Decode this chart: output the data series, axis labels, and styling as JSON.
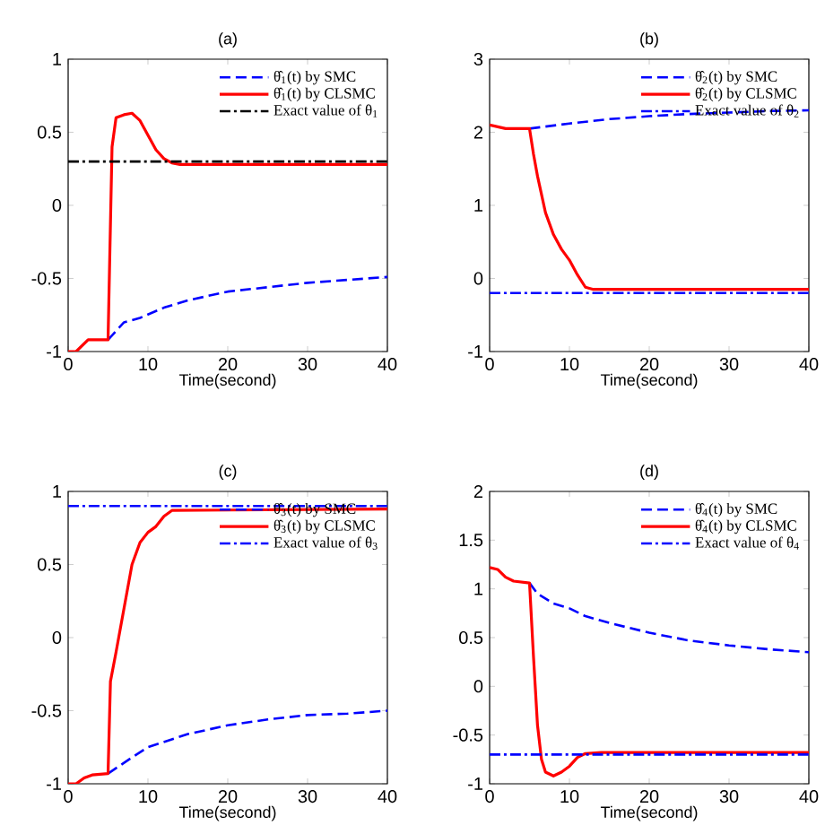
{
  "chart_data": [
    {
      "type": "line",
      "title": "(a)",
      "xlabel": "Time(second)",
      "xlim": [
        0,
        40
      ],
      "ylim": [
        -1,
        1
      ],
      "xticks": [
        0,
        10,
        20,
        30,
        40
      ],
      "yticks": [
        -1,
        -0.5,
        0,
        0.5,
        1
      ],
      "legend": "top right",
      "series": [
        {
          "name": "θ̂$_{1}$(t) by SMC",
          "color": "#0000ff",
          "line_style": "dashed",
          "x": [
            5,
            7,
            9,
            12,
            15,
            20,
            25,
            30,
            35,
            40
          ],
          "values": [
            -0.92,
            -0.8,
            -0.77,
            -0.7,
            -0.65,
            -0.59,
            -0.56,
            -0.53,
            -0.51,
            -0.49
          ]
        },
        {
          "name": "θ̂$_{1}$(t) by CLSMC",
          "color": "#ff0000",
          "line_style": "solid",
          "x": [
            0,
            1,
            2.5,
            5,
            5.5,
            6,
            7,
            8,
            9,
            10,
            11,
            12,
            13,
            14,
            40
          ],
          "values": [
            -1,
            -1,
            -0.92,
            -0.92,
            0.4,
            0.6,
            0.62,
            0.63,
            0.58,
            0.48,
            0.38,
            0.32,
            0.29,
            0.28,
            0.28
          ]
        },
        {
          "name": "Exact value of θ$_{1}$",
          "color": "#000000",
          "line_style": "dashdot",
          "x": [
            0,
            40
          ],
          "values": [
            0.3,
            0.3
          ]
        }
      ]
    },
    {
      "type": "line",
      "title": "(b)",
      "xlabel": "Time(second)",
      "xlim": [
        0,
        40
      ],
      "ylim": [
        -1,
        3
      ],
      "xticks": [
        0,
        10,
        20,
        30,
        40
      ],
      "yticks": [
        -1,
        0,
        1,
        2,
        3
      ],
      "legend": "top right",
      "series": [
        {
          "name": "θ̂$_{2}$(t) by SMC",
          "color": "#0000ff",
          "line_style": "dashed",
          "x": [
            5,
            10,
            15,
            20,
            25,
            30,
            35,
            40
          ],
          "values": [
            2.05,
            2.12,
            2.18,
            2.22,
            2.25,
            2.27,
            2.29,
            2.3
          ]
        },
        {
          "name": "θ̂$_{2}$(t) by CLSMC",
          "color": "#ff0000",
          "line_style": "solid",
          "x": [
            0,
            2,
            5,
            5.5,
            6,
            7,
            8,
            9,
            10,
            11,
            12,
            13,
            40
          ],
          "values": [
            2.1,
            2.05,
            2.05,
            1.7,
            1.4,
            0.9,
            0.6,
            0.4,
            0.25,
            0.05,
            -0.12,
            -0.15,
            -0.15
          ]
        },
        {
          "name": "Exact value of θ$_{2}$",
          "color": "#0000ff",
          "line_style": "dashdot",
          "x": [
            0,
            40
          ],
          "values": [
            -0.2,
            -0.2
          ]
        }
      ]
    },
    {
      "type": "line",
      "title": "(c)",
      "xlabel": "Time(second)",
      "xlim": [
        0,
        40
      ],
      "ylim": [
        -1,
        1
      ],
      "xticks": [
        0,
        10,
        20,
        30,
        40
      ],
      "yticks": [
        -1,
        -0.5,
        0,
        0.5,
        1
      ],
      "legend": "top right",
      "series": [
        {
          "name": "θ̂$_{3}$(t) by SMC",
          "color": "#0000ff",
          "line_style": "dashed",
          "x": [
            5,
            8,
            10,
            15,
            20,
            25,
            30,
            35,
            40
          ],
          "values": [
            -0.93,
            -0.82,
            -0.75,
            -0.66,
            -0.6,
            -0.56,
            -0.53,
            -0.52,
            -0.5
          ]
        },
        {
          "name": "θ̂$_{3}$(t) by CLSMC",
          "color": "#ff0000",
          "line_style": "solid",
          "x": [
            0,
            1,
            2,
            3,
            5,
            5.3,
            6,
            7,
            8,
            9,
            10,
            11,
            12,
            13,
            40
          ],
          "values": [
            -1,
            -1,
            -0.96,
            -0.94,
            -0.93,
            -0.3,
            -0.1,
            0.2,
            0.5,
            0.65,
            0.72,
            0.76,
            0.83,
            0.87,
            0.88
          ]
        },
        {
          "name": "Exact value of θ$_{3}$",
          "color": "#0000ff",
          "line_style": "dashdot",
          "x": [
            0,
            40
          ],
          "values": [
            0.9,
            0.9
          ]
        }
      ]
    },
    {
      "type": "line",
      "title": "(d)",
      "xlabel": "Time(second)",
      "xlim": [
        0,
        40
      ],
      "ylim": [
        -1,
        2
      ],
      "xticks": [
        0,
        10,
        20,
        30,
        40
      ],
      "yticks": [
        -1,
        -0.5,
        0,
        0.5,
        1,
        1.5,
        2
      ],
      "legend": "top right",
      "series": [
        {
          "name": "θ̂$_{4}$(t) by SMC",
          "color": "#0000ff",
          "line_style": "dashed",
          "x": [
            5,
            6,
            8,
            10,
            12,
            15,
            20,
            25,
            30,
            35,
            40
          ],
          "values": [
            1.06,
            0.95,
            0.85,
            0.8,
            0.72,
            0.65,
            0.55,
            0.47,
            0.42,
            0.38,
            0.35
          ]
        },
        {
          "name": "θ̂$_{4}$(t) by CLSMC",
          "color": "#ff0000",
          "line_style": "solid",
          "x": [
            0,
            1,
            2,
            3,
            5,
            5.5,
            6,
            6.5,
            7,
            8,
            9,
            10,
            11,
            12,
            14,
            40
          ],
          "values": [
            1.22,
            1.2,
            1.12,
            1.08,
            1.06,
            0.3,
            -0.4,
            -0.75,
            -0.88,
            -0.92,
            -0.88,
            -0.82,
            -0.73,
            -0.69,
            -0.68,
            -0.68
          ]
        },
        {
          "name": "Exact value of θ$_{4}$",
          "color": "#0000ff",
          "line_style": "dashdot",
          "x": [
            0,
            40
          ],
          "values": [
            -0.7,
            -0.7
          ]
        }
      ]
    }
  ]
}
